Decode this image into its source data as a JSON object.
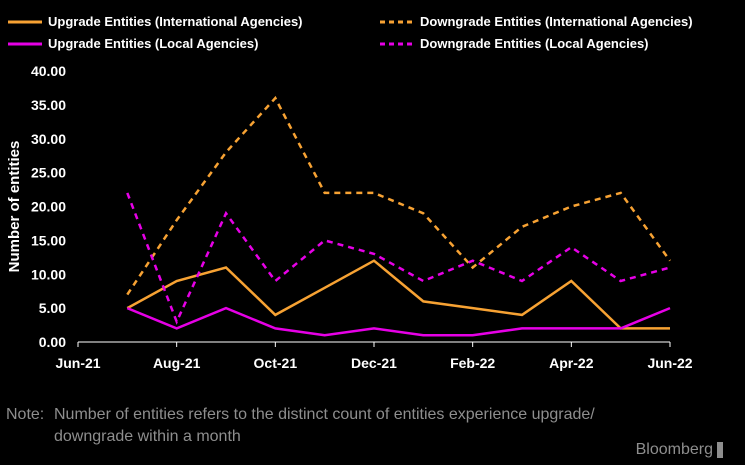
{
  "chart_data": {
    "type": "line",
    "title": "",
    "ylabel": "Number of entities",
    "xlabel": "",
    "x_ticks": [
      "Jun-21",
      "Aug-21",
      "Oct-21",
      "Dec-21",
      "Feb-22",
      "Apr-22",
      "Jun-22"
    ],
    "y_ticks": [
      "0.00",
      "5.00",
      "10.00",
      "15.00",
      "20.00",
      "25.00",
      "30.00",
      "35.00",
      "40.00"
    ],
    "ylim": [
      0,
      40
    ],
    "x": [
      "Jul-21",
      "Aug-21",
      "Sep-21",
      "Oct-21",
      "Nov-21",
      "Dec-21",
      "Jan-22",
      "Feb-22",
      "Mar-22",
      "Apr-22",
      "May-22",
      "Jun-22"
    ],
    "grid": false,
    "legend_position": "top",
    "series": [
      {
        "name": "Upgrade Entities (International Agencies)",
        "color": "#f7a233",
        "style": "solid",
        "values": [
          5,
          9,
          11,
          4,
          8,
          12,
          6,
          5,
          4,
          9,
          2,
          2
        ]
      },
      {
        "name": "Upgrade Entities (Local Agencies)",
        "color": "#e600e6",
        "style": "solid",
        "values": [
          5,
          2,
          5,
          2,
          1,
          2,
          1,
          1,
          2,
          2,
          2,
          5
        ]
      },
      {
        "name": "Downgrade Entities (International Agencies)",
        "color": "#f7a233",
        "style": "dashed",
        "values": [
          7,
          18,
          28,
          36,
          22,
          22,
          19,
          11,
          17,
          20,
          22,
          12
        ]
      },
      {
        "name": "Downgrade Entities (Local Agencies)",
        "color": "#e600e6",
        "style": "dashed",
        "values": [
          22,
          3,
          19,
          9,
          15,
          13,
          9,
          12,
          9,
          14,
          9,
          11
        ]
      }
    ]
  },
  "note": {
    "label": "Note:",
    "line1": "Number of entities refers to the distinct count of entities experience upgrade/",
    "line2": "downgrade within a month"
  },
  "brand": "Bloomberg"
}
